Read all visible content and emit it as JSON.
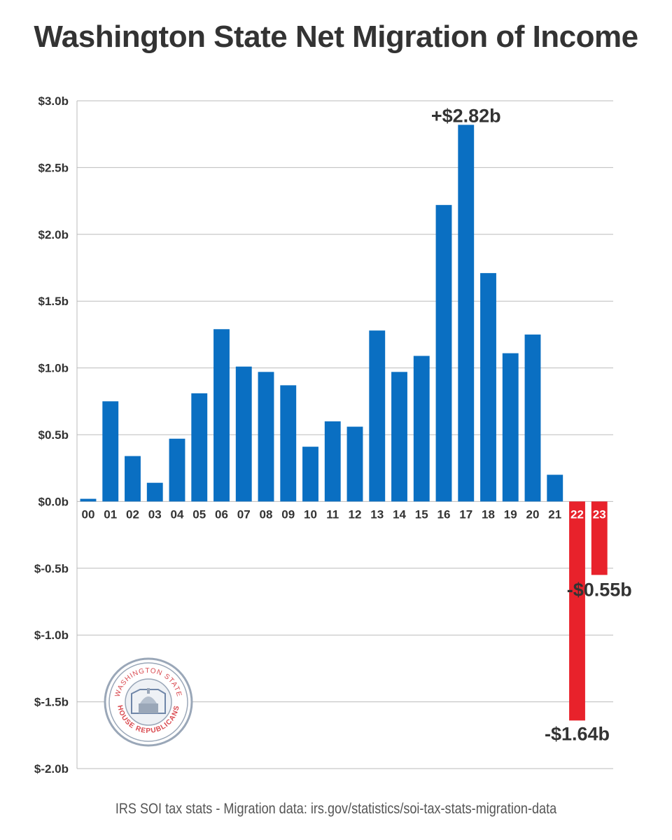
{
  "title": "Washington State Net Migration of Income",
  "source": "IRS SOI tax stats - Migration data: irs.gov/statistics/soi-tax-stats-migration-data",
  "logo": {
    "text_top": "WASHINGTON STATE",
    "text_bottom": "HOUSE REPUBLICANS",
    "icon": "capitol-dome-icon"
  },
  "chart_data": {
    "type": "bar",
    "title": "Washington State Net Migration of Income",
    "xlabel": "",
    "ylabel": "",
    "ylim": [
      -2.0,
      3.0
    ],
    "yticks": [
      3.0,
      2.5,
      2.0,
      1.5,
      1.0,
      0.5,
      0.0,
      -0.5,
      -1.0,
      -1.5,
      -2.0
    ],
    "ytick_labels": [
      "$3.0b",
      "$2.5b",
      "$2.0b",
      "$1.5b",
      "$1.0b",
      "$0.5b",
      "$0.0b",
      "$-0.5b",
      "$-1.0b",
      "$-1.5b",
      "$-2.0b"
    ],
    "grid": true,
    "categories": [
      "00",
      "01",
      "02",
      "03",
      "04",
      "05",
      "06",
      "07",
      "08",
      "09",
      "10",
      "11",
      "12",
      "13",
      "14",
      "15",
      "16",
      "17",
      "18",
      "19",
      "20",
      "21",
      "22",
      "23"
    ],
    "values": [
      0.02,
      0.75,
      0.34,
      0.14,
      0.47,
      0.81,
      1.29,
      1.01,
      0.97,
      0.87,
      0.41,
      0.6,
      0.56,
      1.28,
      0.97,
      1.09,
      2.22,
      2.82,
      1.71,
      1.11,
      1.25,
      0.2,
      -1.64,
      -0.55
    ],
    "colors": {
      "positive": "#0a6fc2",
      "negative": "#e8222b",
      "grid": "#bbbbbb",
      "text": "#333333"
    },
    "annotations": [
      {
        "category": "17",
        "text": "+$2.82b"
      },
      {
        "category": "22",
        "text": "-$1.64b"
      },
      {
        "category": "23",
        "text": "-$0.55b"
      }
    ]
  }
}
